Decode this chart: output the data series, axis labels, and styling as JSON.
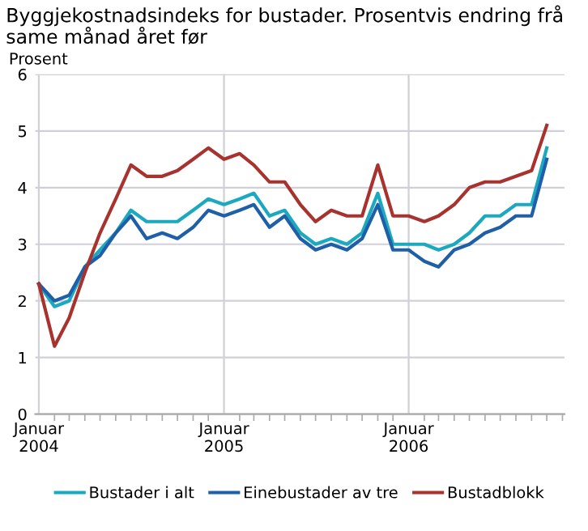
{
  "chart_data": {
    "type": "line",
    "title": "Byggjekostnadsindeks for bustader. Prosentvis endring frå same månad året før",
    "ylabel": "Prosent",
    "x": [
      "2004-01",
      "2004-02",
      "2004-03",
      "2004-04",
      "2004-05",
      "2004-06",
      "2004-07",
      "2004-08",
      "2004-09",
      "2004-10",
      "2004-11",
      "2004-12",
      "2005-01",
      "2005-02",
      "2005-03",
      "2005-04",
      "2005-05",
      "2005-06",
      "2005-07",
      "2005-08",
      "2005-09",
      "2005-10",
      "2005-11",
      "2005-12",
      "2006-01",
      "2006-02",
      "2006-03",
      "2006-04",
      "2006-05",
      "2006-06",
      "2006-07",
      "2006-08",
      "2006-09",
      "2006-10"
    ],
    "series": [
      {
        "name": "Bustader i alt",
        "color": "#1aa9bf",
        "values": [
          2.3,
          1.9,
          2.0,
          2.6,
          2.9,
          3.2,
          3.6,
          3.4,
          3.4,
          3.4,
          3.6,
          3.8,
          3.7,
          3.8,
          3.9,
          3.5,
          3.6,
          3.2,
          3.0,
          3.1,
          3.0,
          3.2,
          3.9,
          3.0,
          3.0,
          3.0,
          2.9,
          3.0,
          3.2,
          3.5,
          3.5,
          3.7,
          3.7,
          4.7
        ]
      },
      {
        "name": "Einebustader av tre",
        "color": "#1f5fa8",
        "values": [
          2.3,
          2.0,
          2.1,
          2.6,
          2.8,
          3.2,
          3.5,
          3.1,
          3.2,
          3.1,
          3.3,
          3.6,
          3.5,
          3.6,
          3.7,
          3.3,
          3.5,
          3.1,
          2.9,
          3.0,
          2.9,
          3.1,
          3.7,
          2.9,
          2.9,
          2.7,
          2.6,
          2.9,
          3.0,
          3.2,
          3.3,
          3.5,
          3.5,
          4.5
        ]
      },
      {
        "name": "Bustadblokk",
        "color": "#a8322d",
        "values": [
          2.3,
          1.2,
          1.7,
          2.5,
          3.2,
          3.8,
          4.4,
          4.2,
          4.2,
          4.3,
          4.5,
          4.7,
          4.5,
          4.6,
          4.4,
          4.1,
          4.1,
          3.7,
          3.4,
          3.6,
          3.5,
          3.5,
          4.4,
          3.5,
          3.5,
          3.4,
          3.5,
          3.7,
          4.0,
          4.1,
          4.1,
          4.2,
          4.3,
          5.1
        ]
      }
    ],
    "xlim": [
      "2003-12-25",
      "2006-11-05"
    ],
    "xticks": [
      {
        "value": "2004-01",
        "label": "Januar\n2004"
      },
      {
        "value": "2005-01",
        "label": "Januar\n2005"
      },
      {
        "value": "2006-01",
        "label": "Januar\n2006"
      }
    ],
    "ylim": [
      0,
      6
    ],
    "yticks": [
      0,
      1,
      2,
      3,
      4,
      5,
      6
    ],
    "grid": true,
    "legend": "bottom",
    "marker": "none",
    "line_style": "solid"
  }
}
